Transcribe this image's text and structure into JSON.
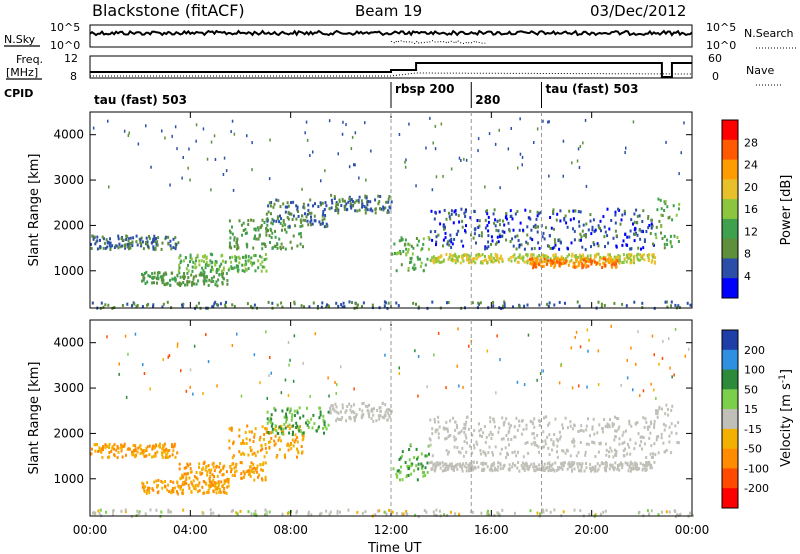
{
  "header": {
    "radar": "Blackstone (fitACF)",
    "beam": "Beam 19",
    "date": "03/Dec/2012"
  },
  "colors": {
    "axis": "#000000",
    "grid_dash": "#999999",
    "power_scale": [
      "#0000ff",
      "#2b4fa8",
      "#5e8f3a",
      "#3fa04d",
      "#8cc63f",
      "#e8c02a",
      "#ff9c00",
      "#ff5a00",
      "#ff0000"
    ],
    "velocity_scale": [
      "#1f3fa8",
      "#2f8fe0",
      "#2c8a3a",
      "#7ccf4a",
      "#c0c0b8",
      "#f4b000",
      "#ff8c00",
      "#ff4a00",
      "#ff0000"
    ]
  },
  "top_panel": {
    "nsky_label": "N.Sky",
    "nsearch_label": "N.Search",
    "left_ticks": [
      "10^5",
      "10^0"
    ],
    "right_ticks": [
      "10^5",
      "10^0"
    ],
    "freq_label_1": "Freq.",
    "freq_label_2": "[MHz]",
    "freq_ticks": [
      "12",
      "8"
    ],
    "nave_label": "Nave",
    "nave_ticks": [
      "60",
      "0"
    ],
    "cpid_label": "CPID",
    "cpid_segments": [
      {
        "label": "tau (fast) 503",
        "start_hour": 0
      },
      {
        "label": "rbsp 200",
        "start_hour": 12.0
      },
      {
        "label": "280",
        "start_hour": 15.2
      },
      {
        "label": "tau (fast) 503",
        "start_hour": 18.0
      }
    ]
  },
  "chart_data": [
    {
      "type": "heatmap",
      "title": "",
      "ylabel": "Slant Range [km]",
      "xlabel": "",
      "xlim": [
        0,
        24
      ],
      "ylim": [
        180,
        4500
      ],
      "x_ticks": [
        0,
        4,
        8,
        12,
        16,
        20,
        24
      ],
      "y_ticks": [
        "1000",
        "2000",
        "3000",
        "4000"
      ],
      "y_tick_values": [
        1000,
        2000,
        3000,
        4000
      ],
      "colorbar_label": "Power [dB]",
      "colorbar_ticks": [
        "28",
        "24",
        "20",
        "16",
        "12",
        "8",
        "4"
      ],
      "colorbar_range": [
        0,
        32
      ],
      "bands": [
        {
          "hours": [
            0.0,
            3.5
          ],
          "range": [
            1500,
            1800
          ],
          "value": 8
        },
        {
          "hours": [
            2.0,
            5.5
          ],
          "range": [
            700,
            1000
          ],
          "value": 12
        },
        {
          "hours": [
            3.5,
            7.0
          ],
          "range": [
            1000,
            1400
          ],
          "value": 16
        },
        {
          "hours": [
            5.5,
            8.5
          ],
          "range": [
            1500,
            2200
          ],
          "value": 12
        },
        {
          "hours": [
            7.0,
            9.5
          ],
          "range": [
            2000,
            2600
          ],
          "value": 8
        },
        {
          "hours": [
            9.5,
            12.0
          ],
          "range": [
            2300,
            2700
          ],
          "value": 8
        },
        {
          "hours": [
            12.0,
            13.5
          ],
          "range": [
            1000,
            1800
          ],
          "value": 14
        },
        {
          "hours": [
            13.5,
            22.5
          ],
          "range": [
            1200,
            1400
          ],
          "value": 20
        },
        {
          "hours": [
            17.5,
            21.0
          ],
          "range": [
            1100,
            1300
          ],
          "value": 28
        },
        {
          "hours": [
            13.5,
            22.5
          ],
          "range": [
            1500,
            2400
          ],
          "value": 6
        },
        {
          "hours": [
            22.5,
            23.5
          ],
          "range": [
            1500,
            2700
          ],
          "value": 14
        }
      ]
    },
    {
      "type": "heatmap",
      "title": "",
      "ylabel": "Slant Range [km]",
      "xlabel": "Time UT",
      "xlim": [
        0,
        24
      ],
      "ylim": [
        180,
        4500
      ],
      "x_ticks": [
        0,
        4,
        8,
        12,
        16,
        20,
        24
      ],
      "x_tick_labels": [
        "00:00",
        "04:00",
        "08:00",
        "12:00",
        "16:00",
        "20:00",
        "00:00"
      ],
      "y_ticks": [
        "1000",
        "2000",
        "3000",
        "4000"
      ],
      "y_tick_values": [
        1000,
        2000,
        3000,
        4000
      ],
      "colorbar_label": "Velocity [m s",
      "colorbar_label_sup": "-1",
      "colorbar_label_end": "]",
      "colorbar_ticks": [
        "200",
        "100",
        "50",
        "15",
        "-15",
        "-50",
        "-100",
        "-200"
      ],
      "bands": [
        {
          "hours": [
            0.0,
            3.5
          ],
          "range": [
            1500,
            1800
          ],
          "value": -50
        },
        {
          "hours": [
            2.0,
            5.5
          ],
          "range": [
            700,
            1000
          ],
          "value": -50
        },
        {
          "hours": [
            3.5,
            7.0
          ],
          "range": [
            1000,
            1400
          ],
          "value": -50
        },
        {
          "hours": [
            5.5,
            8.5
          ],
          "range": [
            1500,
            2200
          ],
          "value": -50
        },
        {
          "hours": [
            7.0,
            9.5
          ],
          "range": [
            2000,
            2600
          ],
          "value": 50
        },
        {
          "hours": [
            9.5,
            12.0
          ],
          "range": [
            2300,
            2700
          ],
          "value": 0
        },
        {
          "hours": [
            12.0,
            13.5
          ],
          "range": [
            1000,
            1800
          ],
          "value": 50
        },
        {
          "hours": [
            13.5,
            22.5
          ],
          "range": [
            1200,
            1400
          ],
          "value": 0
        },
        {
          "hours": [
            13.5,
            22.5
          ],
          "range": [
            1500,
            2400
          ],
          "value": 0
        },
        {
          "hours": [
            22.5,
            23.5
          ],
          "range": [
            1500,
            2700
          ],
          "value": 0
        }
      ]
    }
  ]
}
